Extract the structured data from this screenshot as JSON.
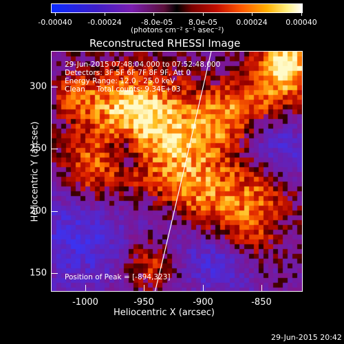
{
  "colorbar": {
    "tick_labels": [
      "-0.00040",
      "-0.00024",
      "-8.0e-05",
      "8.0e-05",
      "0.00024",
      "0.00040"
    ],
    "units_label": "(photons cm⁻² s⁻¹ asec⁻²)"
  },
  "title": "Reconstructed RHESSI Image",
  "info": {
    "time_range": "29-Jun-2015 07:48:04.000 to 07:52:48.000",
    "detectors": "Detectors: 3F 5F 6F 7F 8F 9F, Att 0",
    "energy_range": "Energy Range: 12.0 - 25.0 keV",
    "clean_counts": "Clean     Total counts: 9.34E+03",
    "peak_position": "Position of Peak = [-894,323]"
  },
  "axes": {
    "x_title": "Heliocentric X (arcsec)",
    "y_title": "Heliocentric Y (arcsec)",
    "x_ticks": [
      "-1000",
      "-950",
      "-900",
      "-850"
    ],
    "y_ticks": [
      "300",
      "250",
      "200",
      "150"
    ]
  },
  "timestamp": "29-Jun-2015 20:42"
}
